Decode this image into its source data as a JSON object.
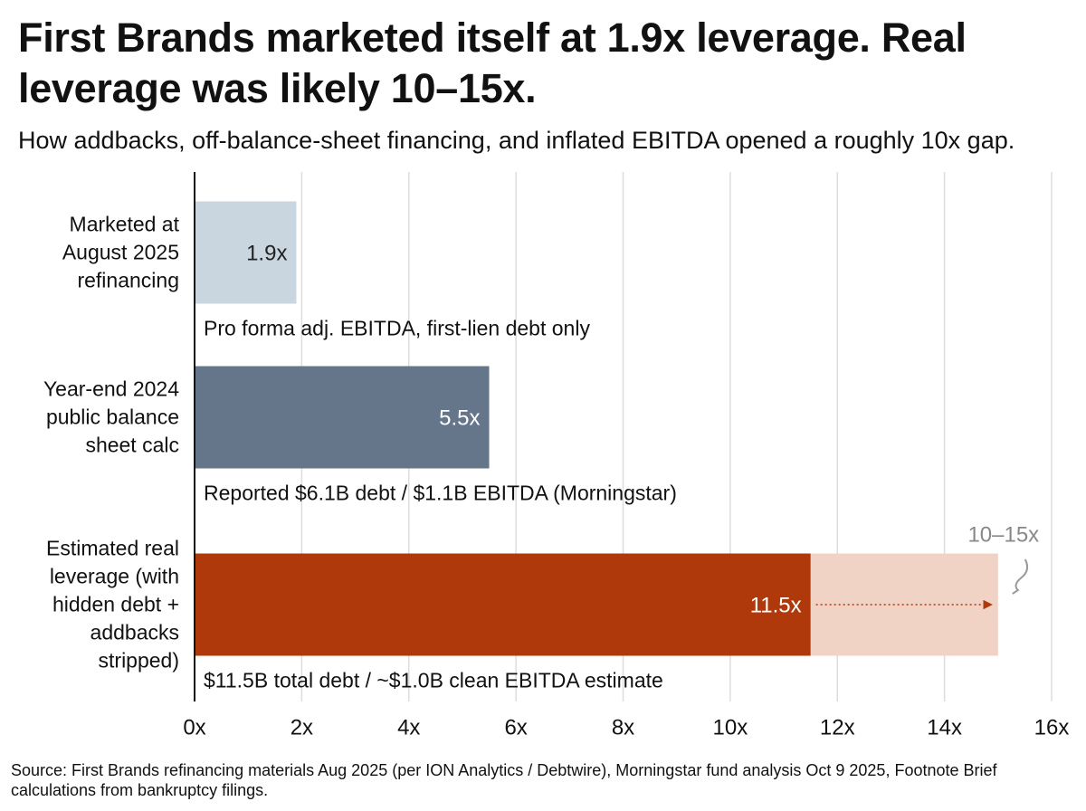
{
  "chart_data": {
    "type": "bar",
    "orientation": "horizontal",
    "title": "First Brands marketed itself at 1.9x leverage. Real leverage was likely 10–15x.",
    "subtitle": "How addbacks, off-balance-sheet financing, and inflated EBITDA opened a roughly 10x gap.",
    "categories": [
      "Marketed at August 2025 refinancing",
      "Year-end 2024 public balance sheet calc",
      "Estimated real leverage (with hidden debt + addbacks stripped)"
    ],
    "values": [
      1.9,
      5.5,
      11.5
    ],
    "value_labels": [
      "1.9x",
      "5.5x",
      "11.5x"
    ],
    "colors": [
      "#c9d6df",
      "#65758a",
      "#b0390c"
    ],
    "label_colors": [
      "#222222",
      "#ffffff",
      "#ffffff"
    ],
    "annotations": [
      "Pro forma adj. EBITDA, first-lien debt only",
      "Reported $6.1B debt / $1.1B EBITDA (Morningstar)",
      "$11.5B total debt / ~$1.0B clean EBITDA estimate"
    ],
    "range": {
      "low": 10,
      "high": 15,
      "label": "10–15x",
      "color": "#f0d3c5"
    },
    "xlim": [
      0,
      16
    ],
    "xticks": [
      {
        "value": 0,
        "label": "0x"
      },
      {
        "value": 2,
        "label": "2x"
      },
      {
        "value": 4,
        "label": "4x"
      },
      {
        "value": 6,
        "label": "6x"
      },
      {
        "value": 8,
        "label": "8x"
      },
      {
        "value": 10,
        "label": "10x"
      },
      {
        "value": 12,
        "label": "12x"
      },
      {
        "value": 14,
        "label": "14x"
      },
      {
        "value": 16,
        "label": "16x"
      }
    ],
    "grid": true,
    "source": "Source: First Brands refinancing materials Aug 2025 (per ION Analytics / Debtwire), Morningstar fund analysis Oct 9 2025, Footnote Brief calculations from bankruptcy filings."
  }
}
